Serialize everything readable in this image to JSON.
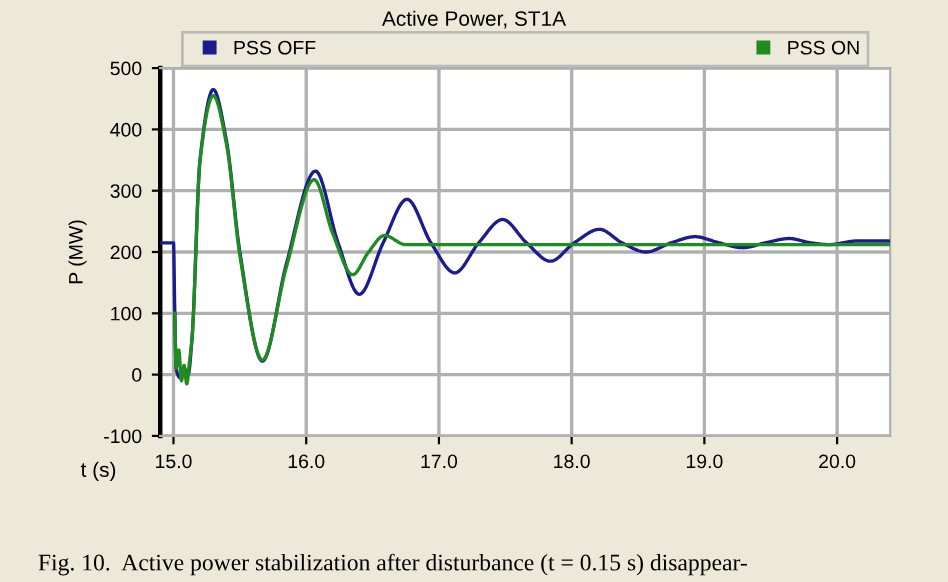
{
  "chart_data": {
    "type": "line",
    "title": "Active Power, ST1A",
    "xlabel": "t (s)",
    "ylabel": "P (MW)",
    "annotations": [
      "Fig. 10.  Active power stabilization after disturbance (t = 0.15 s) disappear-"
    ],
    "xlim": [
      14.9,
      20.4
    ],
    "ylim": [
      -100,
      500
    ],
    "xticks": [
      {
        "value": 15,
        "label": "15.0"
      },
      {
        "value": 16,
        "label": "16.0"
      },
      {
        "value": 17,
        "label": "17.0"
      },
      {
        "value": 18,
        "label": "18.0"
      },
      {
        "value": 19,
        "label": "19.0"
      },
      {
        "value": 20,
        "label": "20.0"
      }
    ],
    "yticks": [
      -100,
      0,
      100,
      200,
      300,
      400,
      500
    ],
    "grid": true,
    "legend": "top",
    "marker": "none",
    "line_style": "solid",
    "series": [
      {
        "name": "PSS OFF",
        "color": "#1c1c8e",
        "x": [
          14.9,
          15.0,
          15.01,
          15.02,
          15.05,
          15.08,
          15.11,
          15.14,
          15.2,
          15.3,
          15.4,
          15.5,
          15.67,
          15.85,
          16.07,
          16.24,
          16.4,
          16.58,
          16.76,
          16.94,
          17.12,
          17.3,
          17.48,
          17.66,
          17.84,
          18.02,
          18.21,
          18.38,
          18.56,
          18.75,
          18.93,
          19.11,
          19.29,
          19.46,
          19.64,
          19.8,
          19.94,
          20.15,
          20.39
        ],
        "values": [
          215,
          215,
          100,
          10,
          -5,
          10,
          0,
          60,
          350,
          465,
          380,
          200,
          22,
          180,
          332,
          215,
          131,
          215,
          286,
          215,
          166,
          215,
          253,
          215,
          185,
          215,
          237,
          215,
          200,
          215,
          225,
          215,
          207,
          215,
          222,
          215,
          212,
          218,
          218
        ]
      },
      {
        "name": "PSS ON",
        "color": "#1e8c1e",
        "x": [
          15.01,
          15.02,
          15.04,
          15.06,
          15.08,
          15.1,
          15.12,
          15.14,
          15.2,
          15.3,
          15.4,
          15.5,
          15.67,
          15.85,
          16.06,
          16.2,
          16.35,
          16.47,
          16.59,
          16.75,
          17.0,
          20.39
        ],
        "values": [
          100,
          10,
          40,
          -10,
          15,
          -15,
          20,
          60,
          350,
          455,
          375,
          195,
          24,
          175,
          318,
          230,
          163,
          200,
          227,
          212,
          212,
          212
        ]
      }
    ]
  }
}
